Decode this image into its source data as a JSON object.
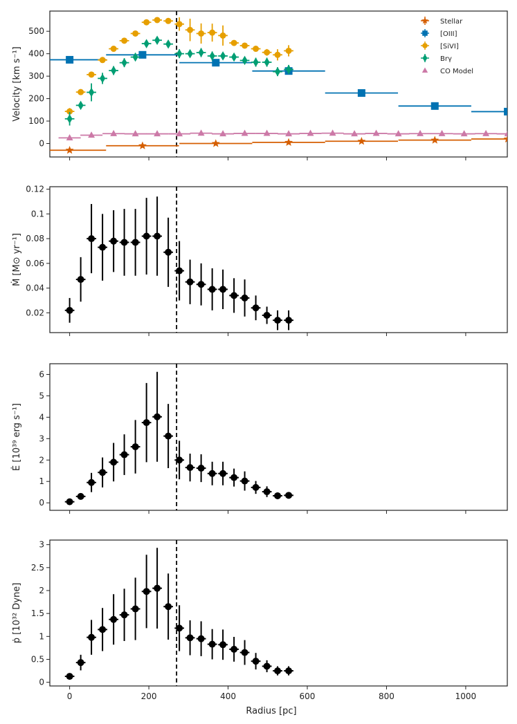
{
  "figure": {
    "xlabel": "Radius [pc]",
    "xlim": [
      -50,
      1105
    ],
    "xticks": [
      0,
      200,
      400,
      600,
      800,
      1000
    ],
    "vline_x": 270
  },
  "colors": {
    "stellar": "#d55e00",
    "oiii": "#0072b2",
    "sivi": "#e69f00",
    "brg": "#009e73",
    "co": "#cc79a7",
    "black": "#000000"
  },
  "chart_data": [
    {
      "type": "scatter",
      "ylabel": "Velocity [km s⁻¹]",
      "ylim": [
        -60,
        590
      ],
      "yticks": [
        0,
        100,
        200,
        300,
        400,
        500
      ],
      "legend_position": "top-right",
      "series": [
        {
          "name": "Stellar",
          "marker": "star",
          "color": "#d55e00",
          "x": [
            0,
            184,
            369,
            553,
            737,
            922,
            1106
          ],
          "xerr": [
            92,
            92,
            92,
            92,
            92,
            92,
            92
          ],
          "y": [
            -30,
            -10,
            0,
            5,
            10,
            15,
            20
          ],
          "yerr": [
            0,
            0,
            0,
            0,
            0,
            0,
            0
          ]
        },
        {
          "name": "[OIII]",
          "marker": "square",
          "color": "#0072b2",
          "x": [
            0,
            184,
            369,
            553,
            737,
            922,
            1106
          ],
          "xerr": [
            92,
            92,
            92,
            92,
            92,
            92,
            92
          ],
          "y": [
            373,
            395,
            360,
            323,
            225,
            167,
            142
          ],
          "yerr": [
            0,
            0,
            0,
            0,
            0,
            0,
            0
          ]
        },
        {
          "name": "[SiVI]",
          "marker": "circle",
          "color": "#e69f00",
          "x": [
            0,
            28,
            55,
            83,
            111,
            138,
            166,
            194,
            221,
            249,
            277,
            304,
            332,
            360,
            387,
            415,
            442,
            470,
            498,
            525,
            553
          ],
          "xerr": [
            12,
            12,
            12,
            12,
            12,
            12,
            12,
            12,
            12,
            12,
            12,
            12,
            12,
            12,
            12,
            12,
            12,
            12,
            12,
            12,
            12
          ],
          "y": [
            143,
            229,
            307,
            372,
            422,
            458,
            490,
            540,
            550,
            546,
            532,
            506,
            490,
            494,
            481,
            448,
            436,
            422,
            406,
            395,
            413
          ],
          "yerr": [
            15,
            10,
            8,
            8,
            10,
            8,
            10,
            10,
            8,
            10,
            30,
            50,
            45,
            40,
            45,
            12,
            10,
            10,
            15,
            25,
            25
          ]
        },
        {
          "name": "Brγ",
          "marker": "diamond",
          "color": "#009e73",
          "x": [
            0,
            28,
            55,
            83,
            111,
            138,
            166,
            194,
            221,
            249,
            277,
            304,
            332,
            360,
            387,
            415,
            442,
            470,
            498,
            525,
            553
          ],
          "xerr": [
            12,
            12,
            12,
            12,
            12,
            12,
            12,
            12,
            12,
            12,
            12,
            12,
            12,
            12,
            12,
            12,
            12,
            12,
            12,
            12,
            12
          ],
          "y": [
            110,
            170,
            228,
            290,
            325,
            360,
            385,
            445,
            460,
            443,
            400,
            400,
            405,
            390,
            390,
            385,
            370,
            362,
            362,
            320,
            330
          ],
          "yerr": [
            30,
            15,
            40,
            25,
            20,
            20,
            15,
            15,
            15,
            15,
            20,
            15,
            20,
            20,
            15,
            15,
            15,
            20,
            20,
            20,
            20
          ]
        },
        {
          "name": "CO Model",
          "marker": "triangle",
          "color": "#cc79a7",
          "x": [
            0,
            55,
            111,
            166,
            221,
            277,
            332,
            387,
            442,
            498,
            553,
            608,
            664,
            719,
            774,
            830,
            885,
            940,
            996,
            1051,
            1106
          ],
          "xerr": [
            28,
            28,
            28,
            28,
            28,
            28,
            28,
            28,
            28,
            28,
            28,
            28,
            28,
            28,
            28,
            28,
            28,
            28,
            28,
            28,
            28
          ],
          "y": [
            25,
            37,
            44,
            43,
            43,
            43,
            46,
            43,
            45,
            45,
            43,
            45,
            46,
            43,
            45,
            43,
            44,
            44,
            43,
            44,
            43
          ],
          "yerr": [
            0,
            0,
            0,
            0,
            0,
            0,
            0,
            0,
            0,
            0,
            0,
            0,
            0,
            0,
            0,
            0,
            0,
            0,
            0,
            0,
            0
          ]
        }
      ]
    },
    {
      "type": "scatter",
      "ylabel": "Ṁ [M⊙ yr⁻¹]",
      "ylim": [
        0.004,
        0.122
      ],
      "yticks": [
        0.02,
        0.04,
        0.06,
        0.08,
        0.1,
        0.12
      ],
      "series": [
        {
          "marker": "circle",
          "color": "#000000",
          "x": [
            0,
            28,
            55,
            83,
            111,
            138,
            166,
            194,
            221,
            249,
            277,
            304,
            332,
            360,
            387,
            415,
            442,
            470,
            498,
            525,
            553
          ],
          "xerr": [
            12,
            12,
            12,
            12,
            12,
            12,
            12,
            12,
            12,
            12,
            12,
            12,
            12,
            12,
            12,
            12,
            12,
            12,
            12,
            12,
            12
          ],
          "y": [
            0.022,
            0.047,
            0.08,
            0.073,
            0.078,
            0.077,
            0.077,
            0.082,
            0.082,
            0.069,
            0.054,
            0.045,
            0.043,
            0.039,
            0.039,
            0.034,
            0.032,
            0.024,
            0.018,
            0.014,
            0.014
          ],
          "yerr": [
            0.01,
            0.018,
            0.028,
            0.027,
            0.025,
            0.027,
            0.027,
            0.031,
            0.032,
            0.028,
            0.024,
            0.018,
            0.017,
            0.017,
            0.016,
            0.014,
            0.015,
            0.01,
            0.007,
            0.008,
            0.008
          ]
        }
      ]
    },
    {
      "type": "scatter",
      "ylabel": "Ė [10³⁹ erg s⁻¹]",
      "ylim": [
        -0.35,
        6.5
      ],
      "yticks": [
        0,
        1,
        2,
        3,
        4,
        5,
        6
      ],
      "series": [
        {
          "marker": "circle",
          "color": "#000000",
          "x": [
            0,
            28,
            55,
            83,
            111,
            138,
            166,
            194,
            221,
            249,
            277,
            304,
            332,
            360,
            387,
            415,
            442,
            470,
            498,
            525,
            553
          ],
          "xerr": [
            12,
            12,
            12,
            12,
            12,
            12,
            12,
            12,
            12,
            12,
            12,
            12,
            12,
            12,
            12,
            12,
            12,
            12,
            12,
            12,
            12
          ],
          "y": [
            0.05,
            0.3,
            0.95,
            1.42,
            1.9,
            2.25,
            2.62,
            3.75,
            4.02,
            3.12,
            2.0,
            1.65,
            1.62,
            1.37,
            1.37,
            1.18,
            1.02,
            0.72,
            0.52,
            0.33,
            0.35
          ],
          "yerr": [
            0.05,
            0.1,
            0.45,
            0.7,
            0.9,
            0.95,
            1.25,
            1.85,
            2.1,
            1.5,
            0.9,
            0.65,
            0.65,
            0.55,
            0.55,
            0.42,
            0.45,
            0.3,
            0.25,
            0.15,
            0.15
          ]
        }
      ]
    },
    {
      "type": "scatter",
      "ylabel": "ṗ [10³² Dyne]",
      "ylim": [
        -0.08,
        3.1
      ],
      "yticks": [
        0.0,
        0.5,
        1.0,
        1.5,
        2.0,
        2.5,
        3.0
      ],
      "series": [
        {
          "marker": "circle",
          "color": "#000000",
          "x": [
            0,
            28,
            55,
            83,
            111,
            138,
            166,
            194,
            221,
            249,
            277,
            304,
            332,
            360,
            387,
            415,
            442,
            470,
            498,
            525,
            553
          ],
          "xerr": [
            12,
            12,
            12,
            12,
            12,
            12,
            12,
            12,
            12,
            12,
            12,
            12,
            12,
            12,
            12,
            12,
            12,
            12,
            12,
            12,
            12
          ],
          "y": [
            0.13,
            0.43,
            0.98,
            1.15,
            1.37,
            1.47,
            1.6,
            1.98,
            2.05,
            1.65,
            1.18,
            0.97,
            0.95,
            0.83,
            0.82,
            0.72,
            0.65,
            0.46,
            0.35,
            0.25,
            0.25
          ],
          "yerr": [
            0.05,
            0.17,
            0.38,
            0.47,
            0.55,
            0.57,
            0.68,
            0.8,
            0.88,
            0.72,
            0.5,
            0.38,
            0.38,
            0.33,
            0.33,
            0.27,
            0.27,
            0.18,
            0.13,
            0.1,
            0.1
          ]
        }
      ]
    }
  ]
}
